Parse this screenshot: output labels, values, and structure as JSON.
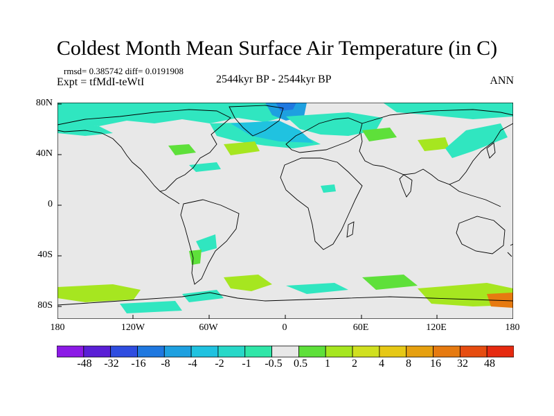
{
  "title": "Coldest Month Mean Surface Air Temperature (in C)",
  "meta_line1": "rmsd= 0.385742 diff= 0.0191908",
  "meta_line2": "Expt = tfMdI-teWtI",
  "center_label": "2544kyr BP - 2544kyr BP",
  "season_label": "ANN",
  "lat_labels": [
    "80N",
    "40N",
    "0",
    "40S",
    "80S"
  ],
  "lon_labels": [
    "180",
    "120W",
    "60W",
    "0",
    "60E",
    "120E",
    "180"
  ],
  "colorbar": {
    "colors": [
      "#8c1ae6",
      "#5a1fd6",
      "#2f4de0",
      "#1f78e0",
      "#1ea0e0",
      "#20c2e0",
      "#28d8c8",
      "#30e6a8",
      "#e8e8e8",
      "#5ee03a",
      "#a6e620",
      "#d0e020",
      "#e6c816",
      "#e6a010",
      "#e67a10",
      "#e64c10",
      "#e62a10"
    ],
    "labels": [
      "-48",
      "-32",
      "-16",
      "-8",
      "-4",
      "-2",
      "-1",
      "-0.5",
      "0.5",
      "1",
      "2",
      "4",
      "8",
      "16",
      "32",
      "48"
    ]
  },
  "map_background_color": "#e8e8e8"
}
